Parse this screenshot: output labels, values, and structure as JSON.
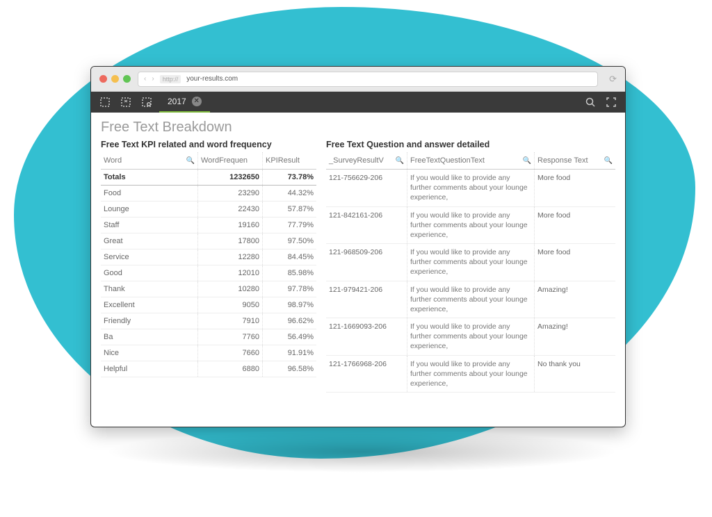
{
  "colors": {
    "blob": "#33bfd1",
    "chrome_bg": "#e8e8e8",
    "toolbar_bg": "#3a3a3a",
    "tab_underline": "#7fba3c",
    "dot_red": "#ed6a5e",
    "dot_yellow": "#f5bf4f",
    "dot_green": "#61c554",
    "title_grey": "#9a9a9a",
    "border": "#cccccc"
  },
  "browser": {
    "proto_label": "http://",
    "url": "your-results.com",
    "nav_prev": "‹",
    "nav_next": "›",
    "refresh_glyph": "⟳"
  },
  "toolbar": {
    "tab_label": "2017",
    "tab_close_glyph": "✕",
    "search_glyph": "🔍",
    "fullscreen_glyph": "⛶"
  },
  "page": {
    "title": "Free Text Breakdown"
  },
  "left": {
    "title": "Free Text KPI related and word frequency",
    "headers": [
      "Word",
      "WordFrequen",
      "KPIResult"
    ],
    "totals_label": "Totals",
    "totals_freq": "1232650",
    "totals_kpi": "73.78%",
    "rows": [
      {
        "word": "Food",
        "freq": "23290",
        "kpi": "44.32%"
      },
      {
        "word": "Lounge",
        "freq": "22430",
        "kpi": "57.87%"
      },
      {
        "word": "Staff",
        "freq": "19160",
        "kpi": "77.79%"
      },
      {
        "word": "Great",
        "freq": "17800",
        "kpi": "97.50%"
      },
      {
        "word": "Service",
        "freq": "12280",
        "kpi": "84.45%"
      },
      {
        "word": "Good",
        "freq": "12010",
        "kpi": "85.98%"
      },
      {
        "word": "Thank",
        "freq": "10280",
        "kpi": "97.78%"
      },
      {
        "word": "Excellent",
        "freq": "9050",
        "kpi": "98.97%"
      },
      {
        "word": "Friendly",
        "freq": "7910",
        "kpi": "96.62%"
      },
      {
        "word": "Ba",
        "freq": "7760",
        "kpi": "56.49%"
      },
      {
        "word": "Nice",
        "freq": "7660",
        "kpi": "91.91%"
      },
      {
        "word": "Helpful",
        "freq": "6880",
        "kpi": "96.58%"
      }
    ]
  },
  "right": {
    "title": "Free Text Question and answer detailed",
    "headers": [
      "_SurveyResultV",
      "FreeTextQuestionText",
      "Response Text"
    ],
    "question_text": "If you would like to provide any further comments about your lounge experience,",
    "rows": [
      {
        "id": "121-756629-206",
        "resp": "More food"
      },
      {
        "id": "121-842161-206",
        "resp": "More food"
      },
      {
        "id": "121-968509-206",
        "resp": "More food"
      },
      {
        "id": "121-979421-206",
        "resp": "Amazing!"
      },
      {
        "id": "121-1669093-206",
        "resp": "Amazing!"
      },
      {
        "id": "121-1766968-206",
        "resp": "No thank you"
      }
    ]
  }
}
